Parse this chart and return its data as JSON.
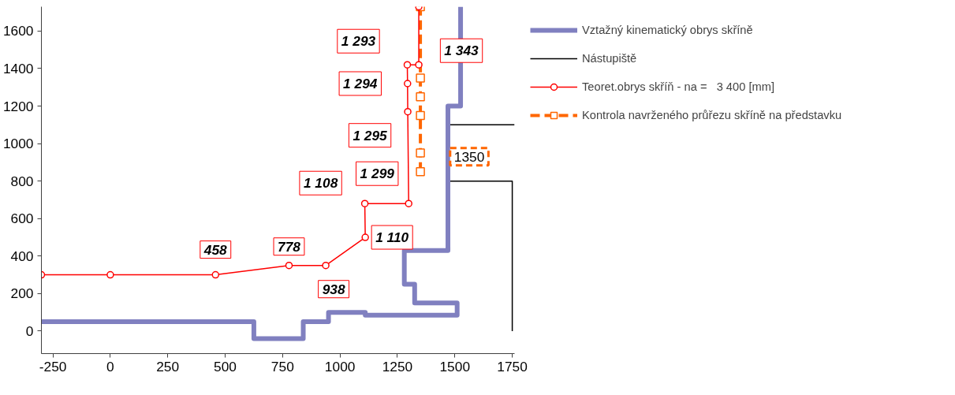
{
  "chart_data": {
    "type": "line",
    "xlim": [
      -300,
      1760
    ],
    "ylim": [
      -120,
      1730
    ],
    "xticks": [
      {
        "value": -250,
        "label": "-250"
      },
      0,
      250,
      500,
      750,
      1000,
      1250,
      1500,
      1750
    ],
    "yticks": [
      0,
      200,
      400,
      600,
      800,
      1000,
      1200,
      1400,
      1600
    ],
    "grid": false,
    "legend": "top right",
    "series": [
      {
        "name": "Vztažný kinematický obrys skříně",
        "color": "#8080c0",
        "marker": "none",
        "line_style": "solid",
        "x": [
          -300,
          625,
          625,
          840,
          840,
          950,
          950,
          1110,
          1110,
          1510,
          1510,
          1325,
          1325,
          1280,
          1280,
          1470,
          1470,
          1525,
          1525
        ],
        "values": [
          50,
          50,
          -40,
          -40,
          50,
          50,
          100,
          100,
          85,
          85,
          150,
          150,
          250,
          250,
          430,
          430,
          1200,
          1200,
          1730
        ]
      },
      {
        "name": "Nástupiště",
        "color": "#000000",
        "marker": "none",
        "line_style": "solid",
        "x": [
          1750,
          1750,
          1470,
          1470,
          1760
        ],
        "values": [
          0,
          800,
          800,
          1100,
          1100
        ]
      },
      {
        "name": "Teoret.obrys skříň - na =   3 400 [mm]",
        "color": "#ff0000",
        "marker": "circle",
        "line_style": "solid",
        "x": [
          -300,
          0,
          458,
          778,
          938,
          1110,
          1108,
          1299,
          1295,
          1294,
          1293,
          1343,
          1343
        ],
        "values": [
          300,
          300,
          300,
          350,
          350,
          500,
          680,
          680,
          1170,
          1320,
          1420,
          1420,
          1730
        ]
      },
      {
        "name": "Kontrola navrženého průřezu skříně na představku",
        "color": "#ff6600",
        "marker": "square",
        "line_style": "dashed",
        "x": [
          1350,
          1350,
          1350,
          1350,
          1350,
          1350
        ],
        "values": [
          850,
          950,
          1150,
          1250,
          1350,
          1730
        ]
      }
    ],
    "annotations": [
      {
        "text": "458",
        "x": 458,
        "y": 300
      },
      {
        "text": "778",
        "x": 778,
        "y": 350
      },
      {
        "text": "938",
        "x": 938,
        "y": 350
      },
      {
        "text": "1 110",
        "x": 1110,
        "y": 500
      },
      {
        "text": "1 108",
        "x": 1108,
        "y": 680
      },
      {
        "text": "1 299",
        "x": 1299,
        "y": 680
      },
      {
        "text": "1 295",
        "x": 1295,
        "y": 1170
      },
      {
        "text": "1 294",
        "x": 1294,
        "y": 1320
      },
      {
        "text": "1 293",
        "x": 1293,
        "y": 1420
      },
      {
        "text": "1 343",
        "x": 1343,
        "y": 1420
      },
      {
        "text": "1350",
        "x": 1350,
        "y": 930
      }
    ]
  }
}
